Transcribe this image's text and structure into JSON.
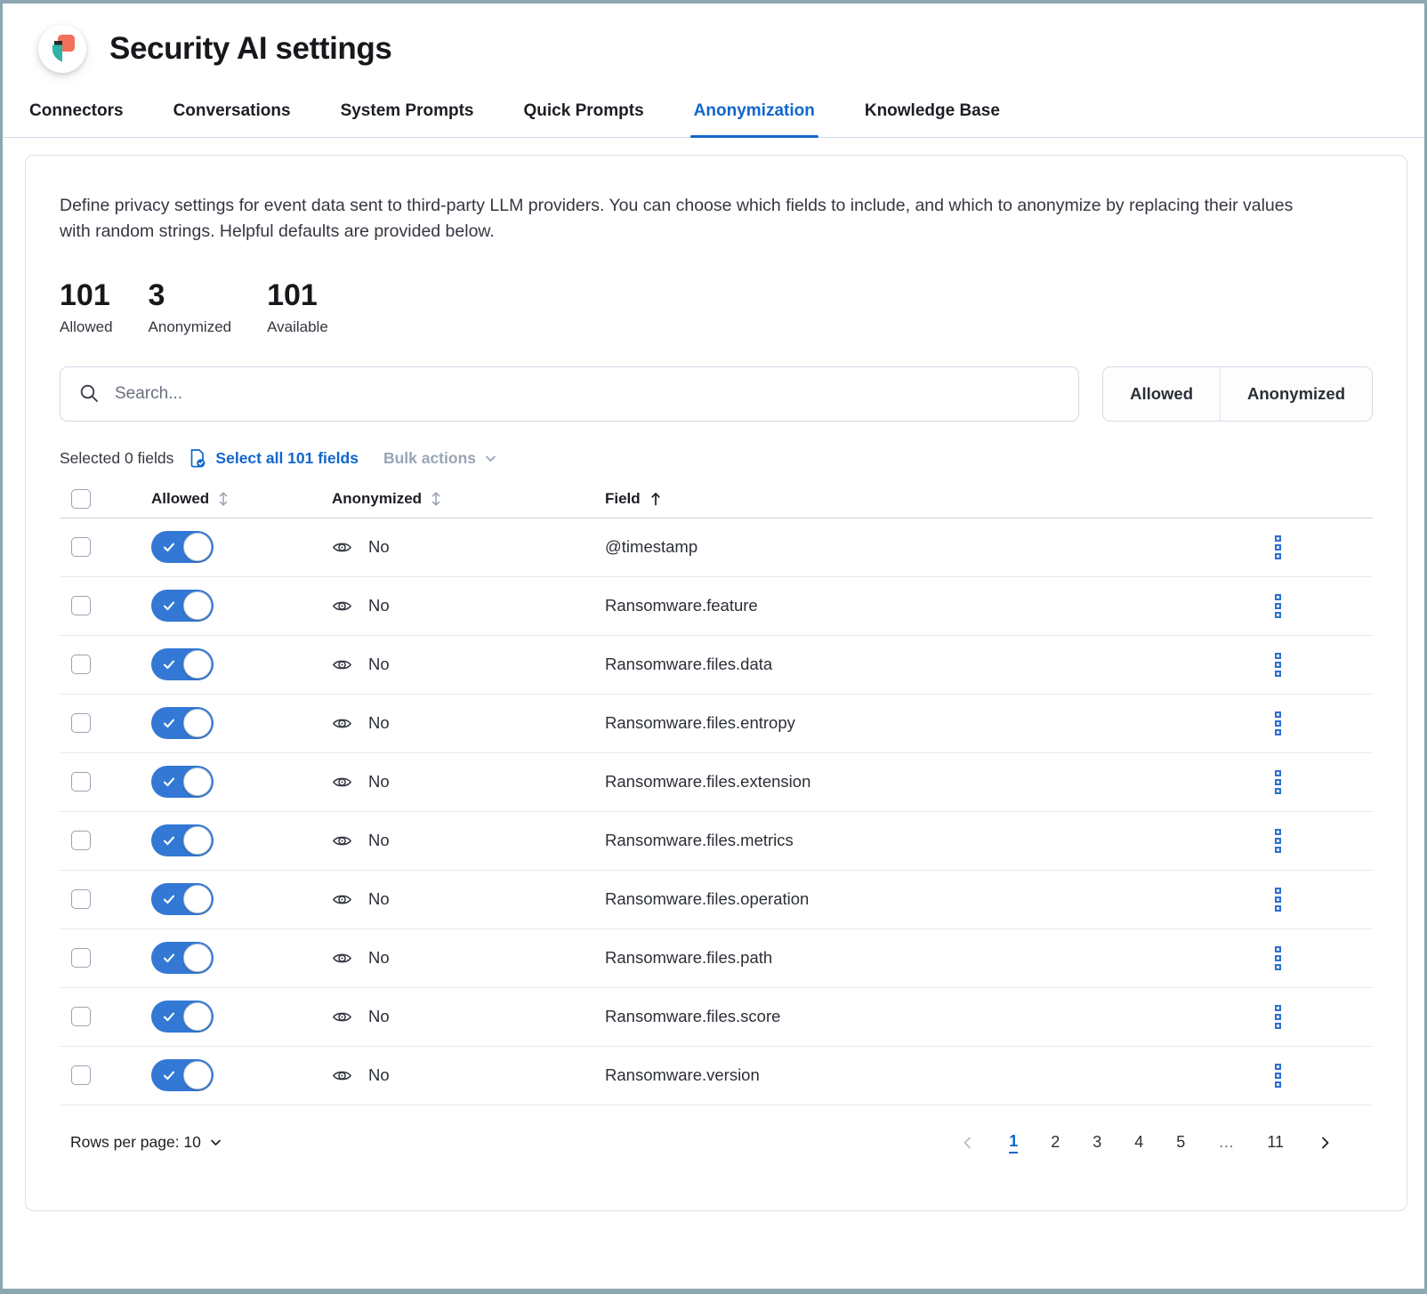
{
  "header": {
    "title": "Security AI settings",
    "logo_icon": "security-shield-icon"
  },
  "tabs": {
    "items": [
      {
        "label": "Connectors",
        "active": false
      },
      {
        "label": "Conversations",
        "active": false
      },
      {
        "label": "System Prompts",
        "active": false
      },
      {
        "label": "Quick Prompts",
        "active": false
      },
      {
        "label": "Anonymization",
        "active": true
      },
      {
        "label": "Knowledge Base",
        "active": false
      }
    ]
  },
  "panel": {
    "description": "Define privacy settings for event data sent to third-party LLM providers. You can choose which fields to include, and which to anonymize by replacing their values with random strings. Helpful defaults are provided below.",
    "stats": [
      {
        "value": "101",
        "label": "Allowed"
      },
      {
        "value": "3",
        "label": "Anonymized"
      },
      {
        "value": "101",
        "label": "Available"
      }
    ],
    "search": {
      "placeholder": "Search...",
      "value": "",
      "icon": "search-icon"
    },
    "filter_buttons": [
      "Allowed",
      "Anonymized"
    ],
    "selection": {
      "selected_text": "Selected 0 fields",
      "select_all_label": "Select all 101 fields",
      "select_all_icon": "document-check-icon",
      "bulk_actions_label": "Bulk actions",
      "bulk_actions_icon": "chevron-down-icon"
    },
    "table": {
      "columns": [
        {
          "label": "Allowed",
          "sort": "unsorted",
          "sort_icon": "sort-arrows-icon"
        },
        {
          "label": "Anonymized",
          "sort": "unsorted",
          "sort_icon": "sort-arrows-icon"
        },
        {
          "label": "Field",
          "sort": "ascending",
          "sort_icon": "arrow-up-icon"
        }
      ],
      "row_icons": {
        "anonymized": "eye-icon",
        "actions": "boxes-vertical-icon"
      },
      "rows": [
        {
          "allowed": true,
          "anonymized": "No",
          "field": "@timestamp"
        },
        {
          "allowed": true,
          "anonymized": "No",
          "field": "Ransomware.feature"
        },
        {
          "allowed": true,
          "anonymized": "No",
          "field": "Ransomware.files.data"
        },
        {
          "allowed": true,
          "anonymized": "No",
          "field": "Ransomware.files.entropy"
        },
        {
          "allowed": true,
          "anonymized": "No",
          "field": "Ransomware.files.extension"
        },
        {
          "allowed": true,
          "anonymized": "No",
          "field": "Ransomware.files.metrics"
        },
        {
          "allowed": true,
          "anonymized": "No",
          "field": "Ransomware.files.operation"
        },
        {
          "allowed": true,
          "anonymized": "No",
          "field": "Ransomware.files.path"
        },
        {
          "allowed": true,
          "anonymized": "No",
          "field": "Ransomware.files.score"
        },
        {
          "allowed": true,
          "anonymized": "No",
          "field": "Ransomware.version"
        }
      ]
    },
    "pagination": {
      "rows_per_page_label": "Rows per page: 10",
      "rows_per_page_icon": "chevron-down-icon",
      "prev_icon": "chevron-left-icon",
      "next_icon": "chevron-right-icon",
      "prev_disabled": true,
      "pages": [
        "1",
        "2",
        "3",
        "4",
        "5",
        "…",
        "11"
      ],
      "active_page": "1"
    }
  },
  "colors": {
    "primary": "#1166cc",
    "toggle_on": "#3378d4",
    "logo_orange": "#F0705A",
    "logo_teal": "#31b2a9",
    "logo_navy": "#22272e",
    "frame_border": "#8CA6B2"
  }
}
